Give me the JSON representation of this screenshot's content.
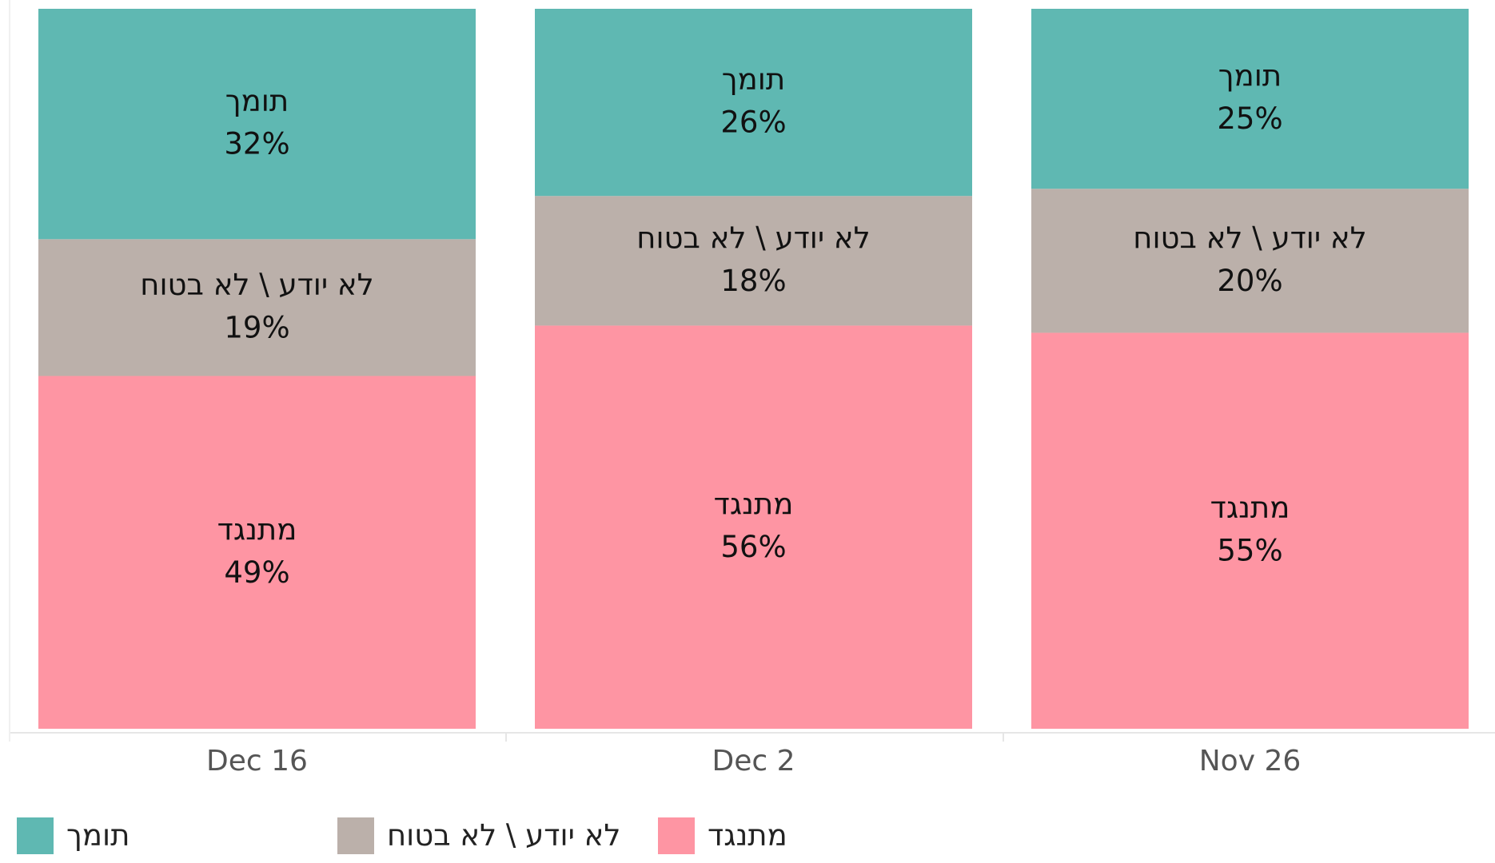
{
  "chart_data": {
    "type": "stacked_bar",
    "categories": [
      "Dec 16",
      "Dec 2",
      "Nov 26"
    ],
    "series": [
      {
        "name": "תומך",
        "color": "#5fb8b2",
        "values": [
          32,
          26,
          25
        ],
        "value_labels": [
          "32%",
          "26%",
          "25%"
        ]
      },
      {
        "name": "לא יודע \\ לא בטוח",
        "color": "#bbb0aa",
        "values": [
          19,
          18,
          20
        ],
        "value_labels": [
          "19%",
          "18%",
          "20%"
        ]
      },
      {
        "name": "מתנגד",
        "color": "#fe95a3",
        "values": [
          49,
          56,
          55
        ],
        "value_labels": [
          "49%",
          "56%",
          "55%"
        ]
      }
    ],
    "ylim": [
      0,
      100
    ],
    "legend": "bottom-left"
  }
}
